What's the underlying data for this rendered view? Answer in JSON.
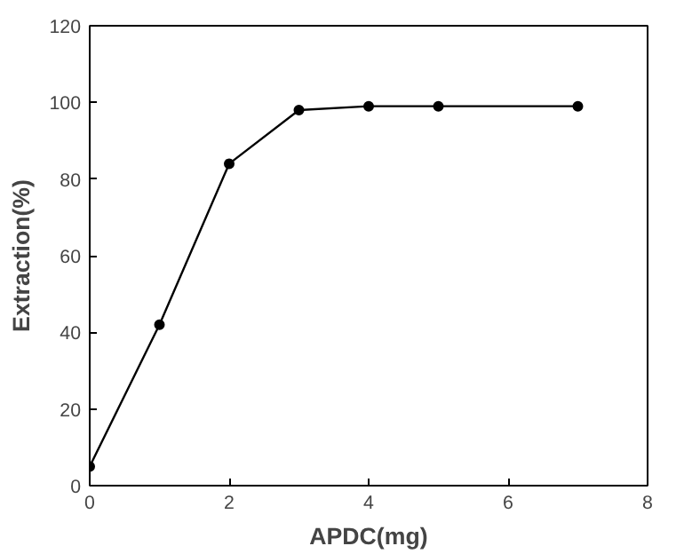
{
  "chart_data": {
    "type": "line",
    "xlabel": "APDC(mg)",
    "ylabel": "Extraction(%)",
    "x": [
      0,
      1,
      2,
      3,
      4,
      5,
      7
    ],
    "series": [
      {
        "color": "#000000",
        "values": [
          5,
          42,
          84,
          98,
          99,
          99,
          99
        ]
      }
    ],
    "xlim": [
      0,
      8
    ],
    "xticks": [
      0,
      2,
      4,
      6,
      8
    ],
    "ylim": [
      0,
      120
    ],
    "yticks": [
      0,
      20,
      40,
      60,
      80,
      100,
      120
    ],
    "grid": false,
    "marker": "circle",
    "line_style": "solid"
  }
}
